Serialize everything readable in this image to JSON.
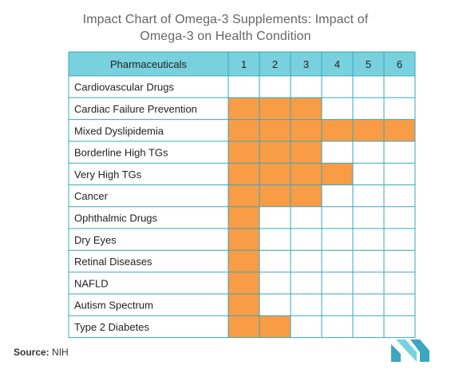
{
  "title_line1": "Impact Chart of Omega-3 Supplements: Impact of",
  "title_line2": "Omega-3 on Health Condition",
  "source_label": "Source:",
  "source_value": "NIH",
  "colors": {
    "header": "#79d1de",
    "filled": "#f89c45",
    "grid": "#3aa7be",
    "text": "#222222"
  },
  "chart_data": {
    "type": "table",
    "header": "Pharmaceuticals",
    "columns": [
      "1",
      "2",
      "3",
      "4",
      "5",
      "6"
    ],
    "rows": [
      {
        "label": "Cardiovascular Drugs",
        "level": 0
      },
      {
        "label": "Cardiac Failure Prevention",
        "level": 3
      },
      {
        "label": "Mixed Dyslipidemia",
        "level": 6
      },
      {
        "label": "Borderline High TGs",
        "level": 3
      },
      {
        "label": "Very High TGs",
        "level": 4
      },
      {
        "label": "Cancer",
        "level": 3
      },
      {
        "label": "Ophthalmic Drugs",
        "level": 1
      },
      {
        "label": "Dry Eyes",
        "level": 1
      },
      {
        "label": "Retinal Diseases",
        "level": 1
      },
      {
        "label": "NAFLD",
        "level": 1
      },
      {
        "label": "Autism Spectrum",
        "level": 1
      },
      {
        "label": "Type 2 Diabetes",
        "level": 2
      }
    ]
  }
}
